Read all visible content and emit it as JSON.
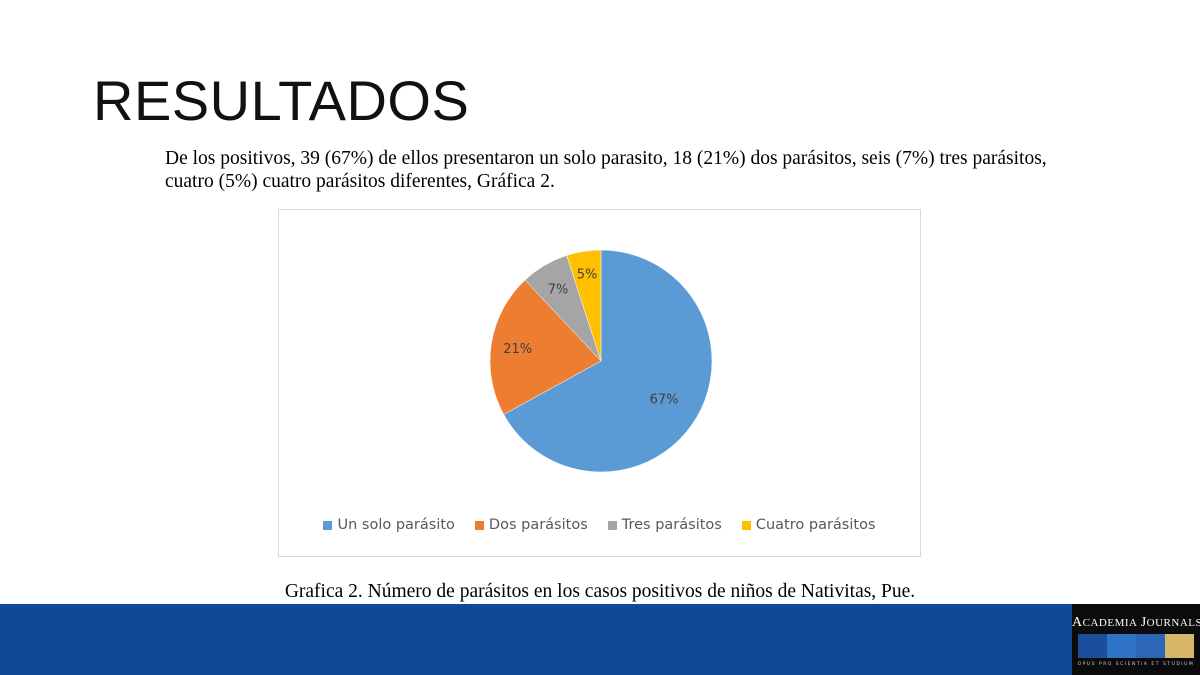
{
  "slide": {
    "title": "RESULTADOS",
    "paragraph_line1": "De los positivos, 39 (67%) de ellos presentaron un solo parasito, 18 (21%) dos parásitos, seis (7%) tres parásitos,",
    "paragraph_line2": "cuatro (5%) cuatro parásitos diferentes, Gráfica 2.",
    "caption": "Grafica 2. Número de parásitos en los casos positivos de niños de Nativitas, Pue."
  },
  "chart_data": {
    "type": "pie",
    "title": "",
    "categories": [
      "Un solo parásito",
      "Dos parásitos",
      "Tres parásitos",
      "Cuatro parásitos"
    ],
    "values": [
      67,
      21,
      7,
      5
    ],
    "data_labels": [
      "67%",
      "21%",
      "7%",
      "5%"
    ],
    "colors": [
      "#5b9bd5",
      "#ed7d31",
      "#a5a5a5",
      "#ffc000"
    ],
    "start_angle_deg": 0,
    "direction": "clockwise",
    "legend_position": "bottom"
  },
  "logo": {
    "name_part1_big": "A",
    "name_part1_small": "CADEMIA",
    "name_part2_big": "J",
    "name_part2_small": "OURNALS",
    "motto": "OPUS PRO SCIENTIA ET STUDIUM",
    "block_colors": [
      "#1b4f9c",
      "#2f73c7",
      "#2b66b8",
      "#d6b76a"
    ]
  },
  "colors": {
    "footer_band": "#0e4a96",
    "logo_background": "#0b0b0b"
  }
}
